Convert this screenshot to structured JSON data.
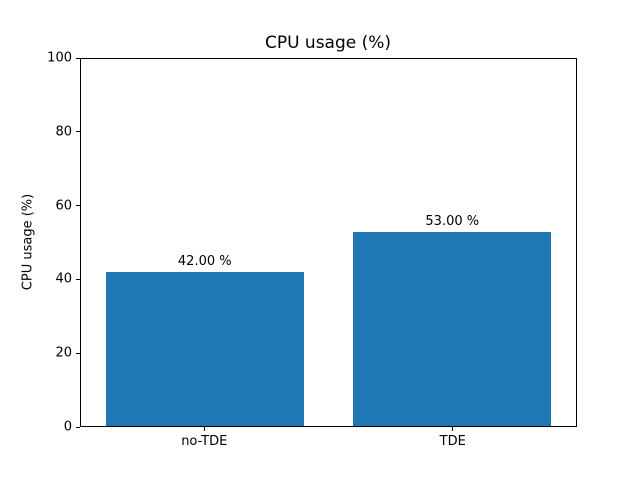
{
  "chart_data": {
    "type": "bar",
    "title": "CPU usage (%)",
    "xlabel": "",
    "ylabel": "CPU usage (%)",
    "categories": [
      "no-TDE",
      "TDE"
    ],
    "values": [
      42,
      53
    ],
    "bar_value_labels": [
      "42.00 %",
      "53.00 %"
    ],
    "bar_color": "#1f77b4",
    "ylim": [
      0,
      100
    ],
    "yticks": [
      0,
      20,
      40,
      60,
      80,
      100
    ],
    "grid": false,
    "legend": "none",
    "bar_width_fraction": 0.8
  }
}
